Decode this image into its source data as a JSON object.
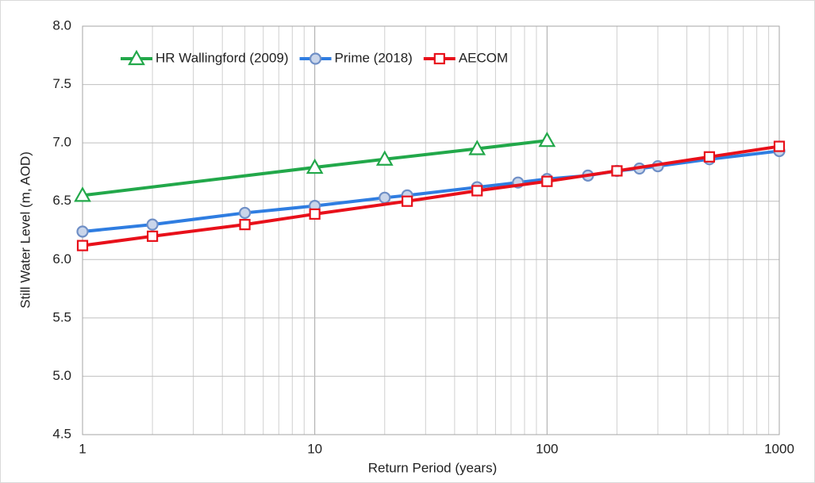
{
  "chart_data": {
    "type": "line",
    "xlabel": "Return Period (years)",
    "ylabel": "Still Water Level  (m, AOD)",
    "xscale": "log",
    "xlim": [
      1,
      1000
    ],
    "xticks": [
      1,
      10,
      100,
      1000
    ],
    "xminorticks": [
      2,
      3,
      4,
      5,
      6,
      7,
      8,
      9,
      20,
      30,
      40,
      50,
      60,
      70,
      80,
      90,
      200,
      300,
      400,
      500,
      600,
      700,
      800,
      900
    ],
    "ylim": [
      4.5,
      8.0
    ],
    "yticks": [
      {
        "value": 4.5,
        "label": "4.5"
      },
      {
        "value": 5.0,
        "label": "5.0"
      },
      {
        "value": 5.5,
        "label": "5.5"
      },
      {
        "value": 6.0,
        "label": "6.0"
      },
      {
        "value": 6.5,
        "label": "6.5"
      },
      {
        "value": 7.0,
        "label": "7.0"
      },
      {
        "value": 7.5,
        "label": "7.5"
      },
      {
        "value": 8.0,
        "label": "8.0"
      }
    ],
    "grid": true,
    "legend": "top-left",
    "series": [
      {
        "name": "HR Wallingford (2009)",
        "color": "#22a84a",
        "marker": "triangle",
        "x": [
          1,
          10,
          20,
          50,
          100
        ],
        "values": [
          6.55,
          6.79,
          6.86,
          6.95,
          7.02
        ]
      },
      {
        "name": "Prime (2018)",
        "color": "#2f7de1",
        "marker": "circle",
        "x": [
          1,
          2,
          5,
          10,
          20,
          25,
          50,
          75,
          100,
          150,
          200,
          250,
          300,
          500,
          1000
        ],
        "values": [
          6.24,
          6.3,
          6.4,
          6.46,
          6.53,
          6.55,
          6.62,
          6.66,
          6.69,
          6.72,
          6.76,
          6.78,
          6.8,
          6.86,
          6.93
        ]
      },
      {
        "name": "AECOM",
        "color": "#e8101a",
        "marker": "square",
        "x": [
          1,
          2,
          5,
          10,
          25,
          50,
          100,
          200,
          500,
          1000
        ],
        "values": [
          6.12,
          6.2,
          6.3,
          6.39,
          6.5,
          6.59,
          6.67,
          6.76,
          6.88,
          6.97
        ]
      }
    ]
  }
}
